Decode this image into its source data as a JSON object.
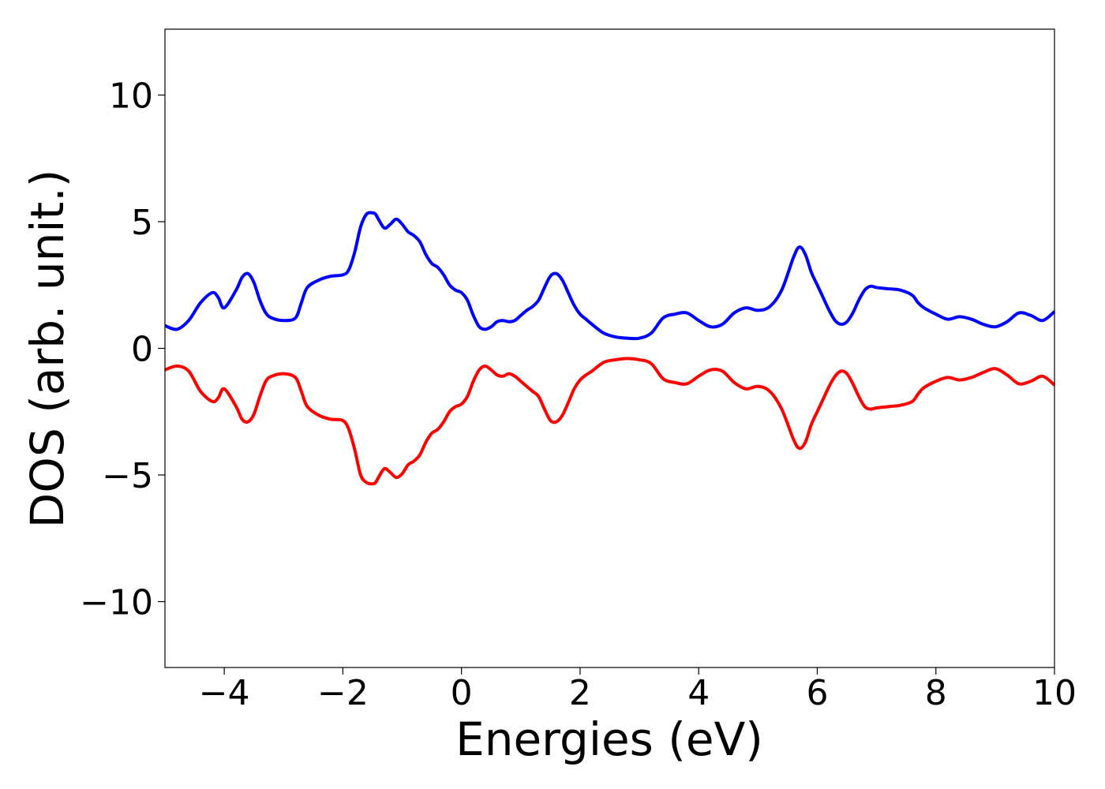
{
  "chart_data": {
    "type": "line",
    "xlabel": "Energies (eV)",
    "ylabel": "DOS (arb. unit.)",
    "xlim": [
      -5,
      10
    ],
    "ylim": [
      -12.6,
      12.6
    ],
    "xticks": [
      -4,
      -2,
      0,
      2,
      4,
      6,
      8,
      10
    ],
    "xtick_labels": [
      "−4",
      "−2",
      "0",
      "2",
      "4",
      "6",
      "8",
      "10"
    ],
    "yticks": [
      -10,
      -5,
      0,
      5,
      10
    ],
    "ytick_labels": [
      "−10",
      "−5",
      "0",
      "5",
      "10"
    ],
    "grid": false,
    "series": [
      {
        "color": "#0000ff",
        "x": [
          -5.0,
          -4.8,
          -4.6,
          -4.4,
          -4.2,
          -4.1,
          -4.0,
          -3.8,
          -3.7,
          -3.6,
          -3.5,
          -3.4,
          -3.3,
          -3.2,
          -3.0,
          -2.8,
          -2.7,
          -2.6,
          -2.4,
          -2.2,
          -2.0,
          -1.9,
          -1.8,
          -1.7,
          -1.6,
          -1.5,
          -1.45,
          -1.4,
          -1.3,
          -1.2,
          -1.1,
          -1.0,
          -0.9,
          -0.8,
          -0.7,
          -0.6,
          -0.5,
          -0.4,
          -0.3,
          -0.2,
          -0.1,
          0.0,
          0.1,
          0.2,
          0.3,
          0.4,
          0.5,
          0.6,
          0.7,
          0.8,
          0.9,
          1.0,
          1.1,
          1.2,
          1.3,
          1.4,
          1.5,
          1.6,
          1.7,
          1.8,
          1.9,
          2.0,
          2.1,
          2.2,
          2.4,
          2.6,
          2.8,
          3.0,
          3.2,
          3.4,
          3.6,
          3.8,
          4.0,
          4.2,
          4.4,
          4.6,
          4.8,
          5.0,
          5.2,
          5.4,
          5.6,
          5.7,
          5.8,
          5.9,
          6.0,
          6.1,
          6.2,
          6.3,
          6.4,
          6.5,
          6.6,
          6.7,
          6.8,
          6.9,
          7.0,
          7.2,
          7.4,
          7.6,
          7.7,
          7.8,
          8.0,
          8.2,
          8.4,
          8.6,
          8.8,
          9.0,
          9.2,
          9.4,
          9.6,
          9.8,
          10.0
        ],
        "y": [
          0.9,
          0.75,
          1.1,
          1.8,
          2.2,
          2.0,
          1.6,
          2.3,
          2.8,
          2.95,
          2.6,
          1.9,
          1.4,
          1.2,
          1.1,
          1.2,
          1.8,
          2.4,
          2.7,
          2.85,
          2.9,
          3.1,
          3.8,
          4.8,
          5.3,
          5.35,
          5.3,
          5.1,
          4.75,
          4.9,
          5.1,
          4.9,
          4.6,
          4.45,
          4.2,
          3.7,
          3.35,
          3.2,
          2.9,
          2.5,
          2.3,
          2.2,
          1.9,
          1.3,
          0.85,
          0.75,
          0.85,
          1.05,
          1.1,
          1.05,
          1.1,
          1.3,
          1.5,
          1.65,
          1.9,
          2.4,
          2.85,
          2.95,
          2.7,
          2.2,
          1.7,
          1.35,
          1.15,
          0.95,
          0.6,
          0.45,
          0.4,
          0.4,
          0.6,
          1.2,
          1.35,
          1.4,
          1.1,
          0.85,
          0.95,
          1.4,
          1.6,
          1.5,
          1.65,
          2.3,
          3.6,
          4.0,
          3.7,
          3.0,
          2.5,
          2.0,
          1.5,
          1.1,
          0.95,
          1.05,
          1.4,
          1.9,
          2.3,
          2.45,
          2.4,
          2.35,
          2.3,
          2.1,
          1.8,
          1.6,
          1.35,
          1.15,
          1.25,
          1.15,
          0.95,
          0.85,
          1.05,
          1.4,
          1.3,
          1.1,
          1.45
        ]
      },
      {
        "color": "#ff0000",
        "x": [
          -5.0,
          -4.8,
          -4.6,
          -4.4,
          -4.2,
          -4.1,
          -4.0,
          -3.8,
          -3.7,
          -3.6,
          -3.5,
          -3.4,
          -3.3,
          -3.2,
          -3.0,
          -2.8,
          -2.7,
          -2.6,
          -2.4,
          -2.2,
          -2.0,
          -1.9,
          -1.8,
          -1.7,
          -1.6,
          -1.5,
          -1.45,
          -1.4,
          -1.3,
          -1.2,
          -1.1,
          -1.0,
          -0.9,
          -0.8,
          -0.7,
          -0.6,
          -0.5,
          -0.4,
          -0.3,
          -0.2,
          -0.1,
          0.0,
          0.1,
          0.2,
          0.3,
          0.4,
          0.5,
          0.6,
          0.7,
          0.8,
          0.9,
          1.0,
          1.1,
          1.2,
          1.3,
          1.4,
          1.5,
          1.6,
          1.7,
          1.8,
          1.9,
          2.0,
          2.1,
          2.2,
          2.4,
          2.6,
          2.8,
          3.0,
          3.2,
          3.4,
          3.6,
          3.8,
          4.0,
          4.2,
          4.4,
          4.6,
          4.8,
          5.0,
          5.2,
          5.4,
          5.6,
          5.7,
          5.8,
          5.9,
          6.0,
          6.1,
          6.2,
          6.3,
          6.4,
          6.5,
          6.6,
          6.7,
          6.8,
          6.9,
          7.0,
          7.2,
          7.4,
          7.6,
          7.7,
          7.8,
          8.0,
          8.2,
          8.4,
          8.6,
          8.8,
          9.0,
          9.2,
          9.4,
          9.6,
          9.8,
          10.0
        ],
        "y": [
          -0.85,
          -0.7,
          -0.9,
          -1.7,
          -2.1,
          -1.95,
          -1.6,
          -2.3,
          -2.8,
          -2.9,
          -2.6,
          -1.9,
          -1.3,
          -1.1,
          -1.0,
          -1.15,
          -1.7,
          -2.3,
          -2.65,
          -2.8,
          -2.85,
          -3.2,
          -4.0,
          -5.0,
          -5.3,
          -5.35,
          -5.3,
          -5.1,
          -4.75,
          -4.9,
          -5.1,
          -4.95,
          -4.6,
          -4.45,
          -4.2,
          -3.7,
          -3.35,
          -3.2,
          -2.9,
          -2.5,
          -2.3,
          -2.2,
          -1.9,
          -1.3,
          -0.85,
          -0.7,
          -0.85,
          -1.05,
          -1.1,
          -1.0,
          -1.1,
          -1.3,
          -1.5,
          -1.7,
          -1.9,
          -2.4,
          -2.85,
          -2.9,
          -2.65,
          -2.15,
          -1.6,
          -1.25,
          -1.05,
          -0.9,
          -0.55,
          -0.45,
          -0.4,
          -0.45,
          -0.6,
          -1.2,
          -1.35,
          -1.4,
          -1.1,
          -0.85,
          -0.9,
          -1.35,
          -1.6,
          -1.5,
          -1.7,
          -2.4,
          -3.6,
          -3.95,
          -3.7,
          -3.0,
          -2.5,
          -2.0,
          -1.5,
          -1.1,
          -0.9,
          -1.0,
          -1.4,
          -1.9,
          -2.3,
          -2.4,
          -2.35,
          -2.3,
          -2.25,
          -2.1,
          -1.8,
          -1.55,
          -1.3,
          -1.15,
          -1.25,
          -1.15,
          -0.95,
          -0.8,
          -1.05,
          -1.4,
          -1.3,
          -1.1,
          -1.45
        ]
      }
    ]
  }
}
